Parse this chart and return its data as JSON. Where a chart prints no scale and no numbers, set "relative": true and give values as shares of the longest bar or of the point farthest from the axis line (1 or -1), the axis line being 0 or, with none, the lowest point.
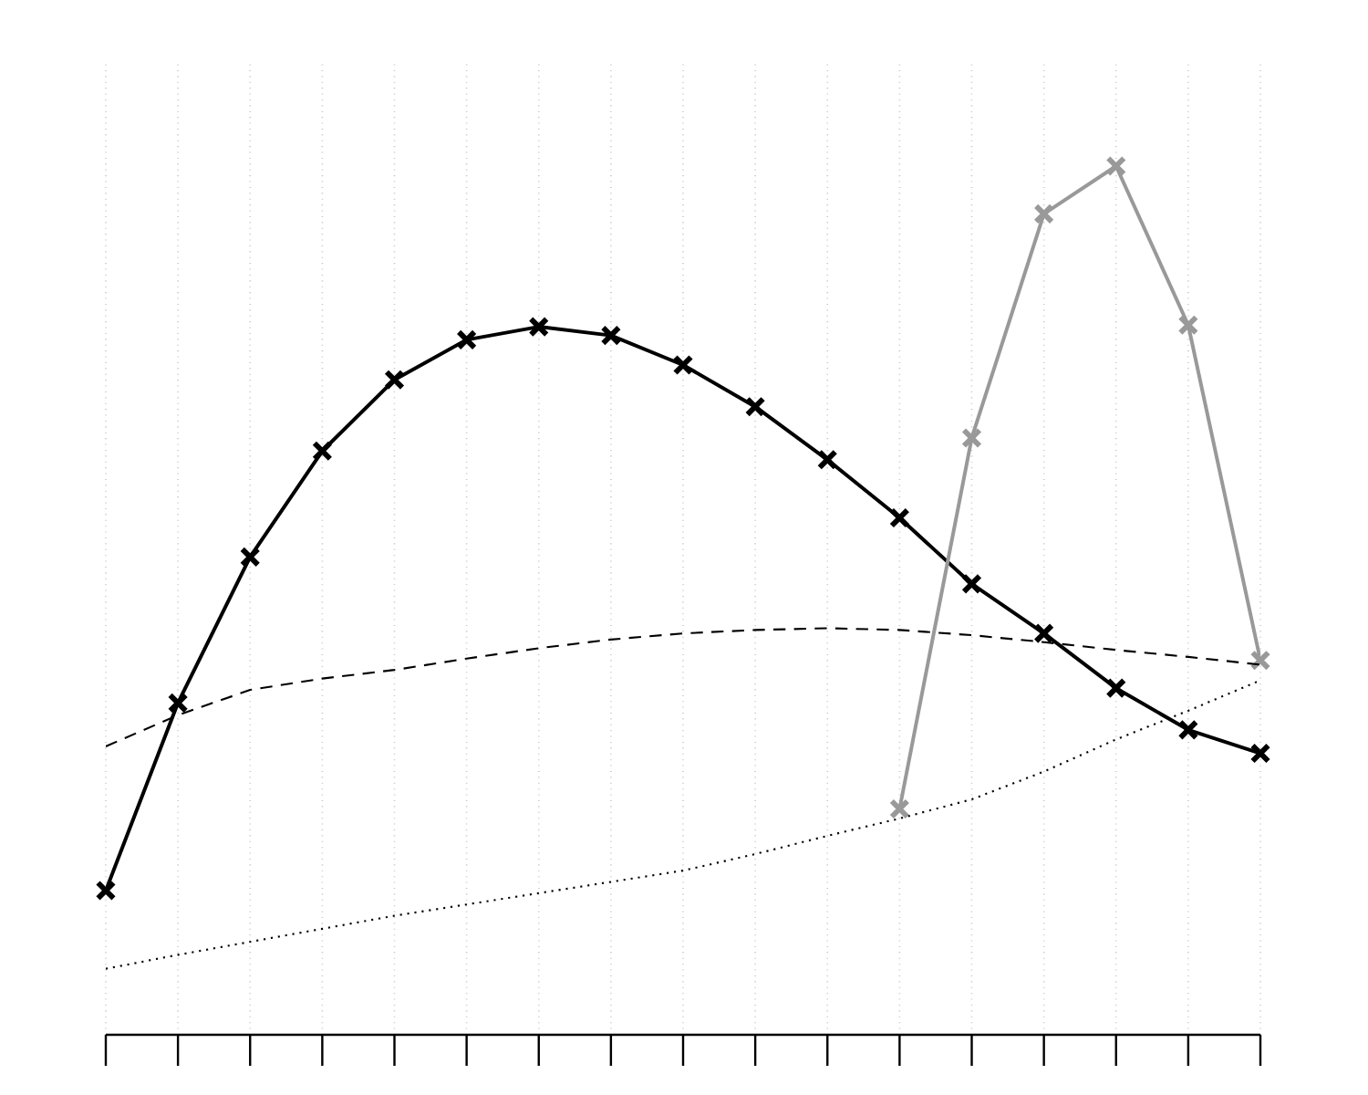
{
  "chart_data": {
    "type": "line",
    "relative": true,
    "categories": [
      null,
      null,
      null,
      null,
      null,
      null,
      null,
      null,
      null,
      null,
      null,
      null,
      null,
      null,
      null,
      null,
      null
    ],
    "grid": "x",
    "series": [
      {
        "color": "#000000",
        "line_style": "solid",
        "marker": "cross",
        "values": [
          0.166,
          0.382,
          0.55,
          0.672,
          0.754,
          0.8,
          0.815,
          0.805,
          0.771,
          0.723,
          0.662,
          0.595,
          0.519,
          0.462,
          0.399,
          0.351,
          0.324
        ]
      },
      {
        "color": "#999999",
        "line_style": "solid",
        "marker": "cross",
        "values": [
          null,
          null,
          null,
          null,
          null,
          null,
          null,
          null,
          null,
          null,
          null,
          0.26,
          0.687,
          0.945,
          1.0,
          0.817,
          0.431
        ]
      },
      {
        "color": "#000000",
        "line_style": "dashed",
        "values": [
          0.332,
          0.368,
          0.397,
          0.41,
          0.42,
          0.433,
          0.445,
          0.455,
          0.462,
          0.466,
          0.468,
          0.466,
          0.46,
          0.452,
          0.443,
          0.435,
          0.426
        ]
      },
      {
        "color": "#000000",
        "line_style": "dotted",
        "values": [
          0.076,
          0.092,
          0.107,
          0.122,
          0.137,
          0.15,
          0.163,
          0.176,
          0.189,
          0.208,
          0.229,
          0.249,
          0.271,
          0.303,
          0.34,
          0.373,
          0.408
        ]
      }
    ]
  }
}
